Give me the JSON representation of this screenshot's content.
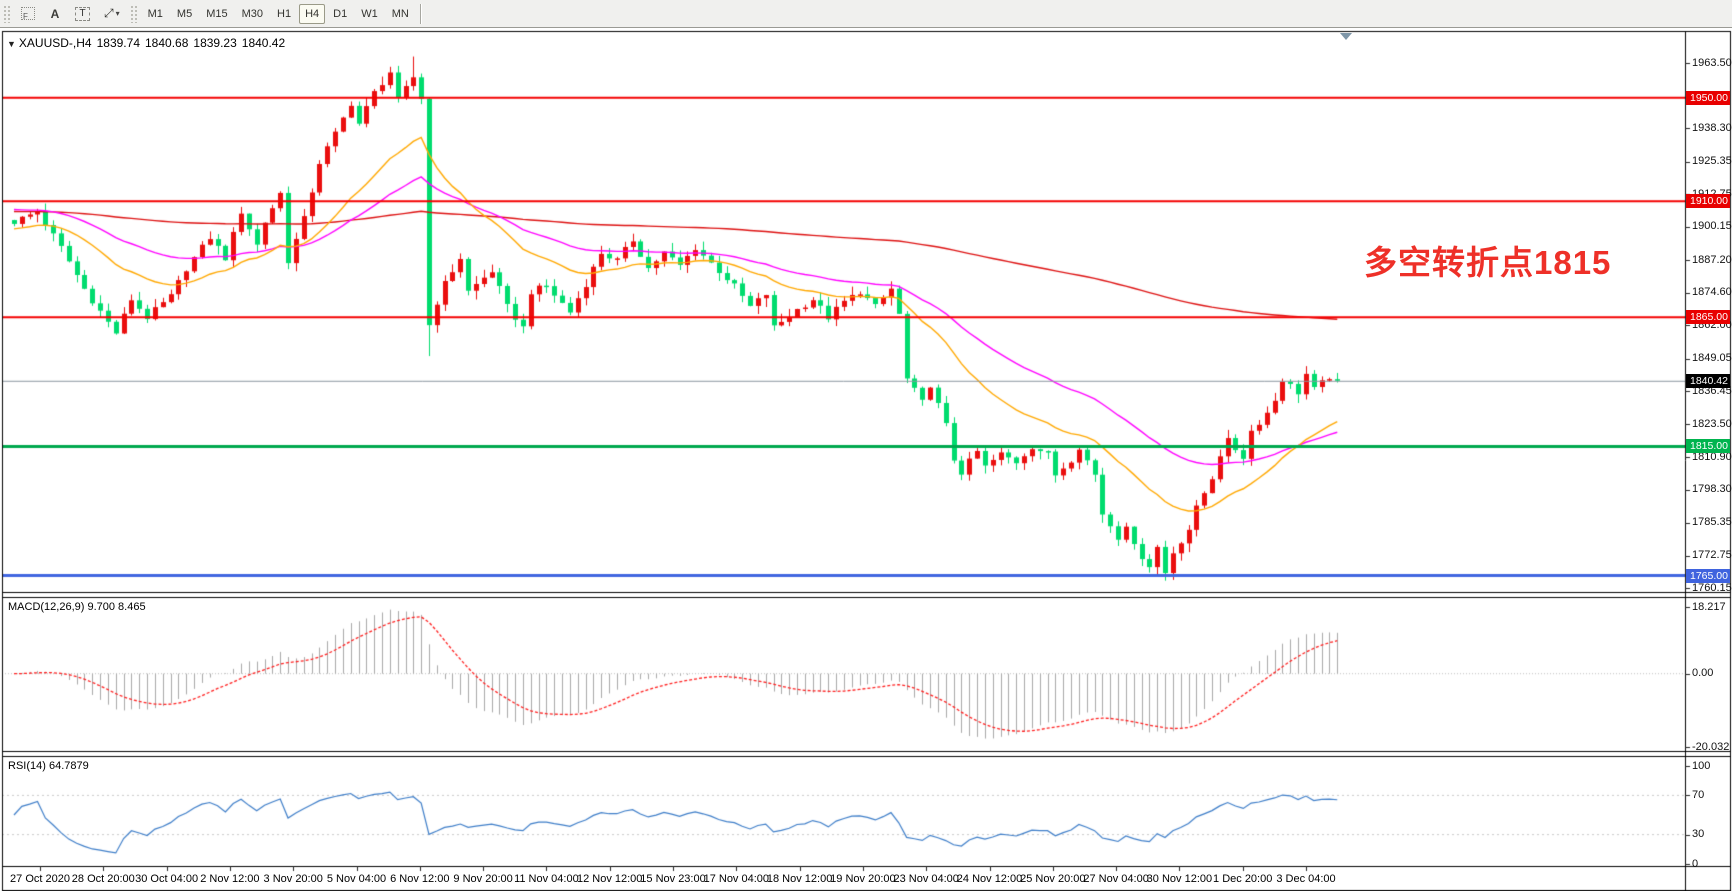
{
  "toolbar": {
    "tools": [
      {
        "name": "snap-grid-f-icon",
        "glyph": "F"
      },
      {
        "name": "text-label-icon",
        "glyph": "A"
      },
      {
        "name": "text-box-icon",
        "glyph": "T"
      },
      {
        "name": "draw-arrows-icon",
        "glyph": "⤢",
        "caret": "▾"
      }
    ],
    "timeframes": [
      "M1",
      "M5",
      "M15",
      "M30",
      "H1",
      "H4",
      "D1",
      "W1",
      "MN"
    ],
    "active_timeframe": "H4"
  },
  "chart": {
    "symbol_title": "XAUUSD-,H4",
    "ohlc": {
      "open": "1839.74",
      "high": "1840.68",
      "low": "1839.23",
      "close": "1840.42"
    },
    "annotation": {
      "text": "多空转折点1815",
      "color": "#ee3028"
    },
    "candle_colors": {
      "bull": "#ea0e0e",
      "bear": "#00dc6e"
    },
    "levels": [
      {
        "label": "1950.00",
        "value": 1950,
        "line_color": "#f40000",
        "badge_color": "#e80000",
        "width": 2
      },
      {
        "label": "1910.00",
        "value": 1910,
        "line_color": "#f40000",
        "badge_color": "#e80000",
        "width": 2
      },
      {
        "label": "1865.00",
        "value": 1865,
        "line_color": "#f40000",
        "badge_color": "#e80000",
        "width": 2
      },
      {
        "label": "1815.00",
        "value": 1815,
        "line_color": "#00a84e",
        "badge_color": "#00b44e",
        "width": 3
      },
      {
        "label": "1765.00",
        "value": 1765,
        "line_color": "#4166e0",
        "badge_color": "#3f63de",
        "width": 3
      }
    ],
    "current_price": {
      "label": "1840.42",
      "value": 1840.42,
      "line_color": "#8a949e",
      "badge_color": "#000000"
    },
    "price_scale": {
      "ticks": [
        "1963.50",
        "1938.30",
        "1925.35",
        "1912.75",
        "1900.15",
        "1887.20",
        "1874.60",
        "1862.00",
        "1849.05",
        "1836.45",
        "1823.50",
        "1810.90",
        "1798.30",
        "1785.35",
        "1772.75",
        "1760.15"
      ]
    }
  },
  "macd": {
    "label": "MACD(12,26,9) 9.700 8.465",
    "ticks": [
      "18.217",
      "0.00",
      "-20.032"
    ],
    "hist_color": "#a9a9a9",
    "signal_color": "#ff2020"
  },
  "rsi": {
    "label": "RSI(14) 64.7879",
    "ticks": [
      "100",
      "70",
      "30",
      "0"
    ],
    "line_color": "#3d7dc8",
    "levels": [
      70,
      30
    ]
  },
  "chart_data": {
    "type": "candlestick",
    "symbol": "XAUUSD",
    "timeframe": "H4",
    "bars": 170,
    "y_axis_range": [
      1760.15,
      1963.5
    ],
    "current_price": 1840.42,
    "last_bar": {
      "open": 1839.74,
      "high": 1840.68,
      "low": 1839.23,
      "close": 1840.42
    },
    "horizontal_levels": [
      1950,
      1910,
      1865,
      1815,
      1765
    ],
    "price_path_anchors": [
      [
        0,
        1902
      ],
      [
        3,
        1906
      ],
      [
        6,
        1892
      ],
      [
        9,
        1876
      ],
      [
        12,
        1863
      ],
      [
        13,
        1859
      ],
      [
        15,
        1872
      ],
      [
        17,
        1865
      ],
      [
        20,
        1873
      ],
      [
        22,
        1884
      ],
      [
        25,
        1896
      ],
      [
        27,
        1888
      ],
      [
        29,
        1906
      ],
      [
        31,
        1893
      ],
      [
        32,
        1902
      ],
      [
        34,
        1913
      ],
      [
        35,
        1887
      ],
      [
        37,
        1903
      ],
      [
        39,
        1925
      ],
      [
        41,
        1936
      ],
      [
        43,
        1948
      ],
      [
        44,
        1940
      ],
      [
        46,
        1952
      ],
      [
        48,
        1960
      ],
      [
        49,
        1949
      ],
      [
        51,
        1958
      ],
      [
        52,
        1950
      ],
      [
        53,
        1862
      ],
      [
        54,
        1871
      ],
      [
        55,
        1878
      ],
      [
        57,
        1888
      ],
      [
        58,
        1875
      ],
      [
        61,
        1883
      ],
      [
        63,
        1869
      ],
      [
        65,
        1861
      ],
      [
        66,
        1875
      ],
      [
        68,
        1877
      ],
      [
        71,
        1867
      ],
      [
        73,
        1878
      ],
      [
        75,
        1890
      ],
      [
        77,
        1887
      ],
      [
        79,
        1895
      ],
      [
        81,
        1884
      ],
      [
        83,
        1890
      ],
      [
        85,
        1885
      ],
      [
        87,
        1892
      ],
      [
        90,
        1883
      ],
      [
        92,
        1877
      ],
      [
        94,
        1869
      ],
      [
        96,
        1874
      ],
      [
        97,
        1861
      ],
      [
        100,
        1868
      ],
      [
        102,
        1872
      ],
      [
        104,
        1865
      ],
      [
        106,
        1871
      ],
      [
        108,
        1875
      ],
      [
        110,
        1869
      ],
      [
        112,
        1876
      ],
      [
        113,
        1866
      ],
      [
        114,
        1841
      ],
      [
        116,
        1832
      ],
      [
        117,
        1839
      ],
      [
        119,
        1823
      ],
      [
        120,
        1810
      ],
      [
        121,
        1805
      ],
      [
        123,
        1813
      ],
      [
        124,
        1807
      ],
      [
        126,
        1812
      ],
      [
        128,
        1809
      ],
      [
        130,
        1815
      ],
      [
        132,
        1812
      ],
      [
        133,
        1804
      ],
      [
        135,
        1810
      ],
      [
        136,
        1815
      ],
      [
        138,
        1804
      ],
      [
        139,
        1789
      ],
      [
        141,
        1780
      ],
      [
        142,
        1785
      ],
      [
        143,
        1776
      ],
      [
        145,
        1769
      ],
      [
        146,
        1776
      ],
      [
        147,
        1766
      ],
      [
        148,
        1774
      ],
      [
        150,
        1783
      ],
      [
        151,
        1791
      ],
      [
        153,
        1803
      ],
      [
        154,
        1812
      ],
      [
        155,
        1817
      ],
      [
        157,
        1811
      ],
      [
        158,
        1821
      ],
      [
        160,
        1828
      ],
      [
        161,
        1833
      ],
      [
        162,
        1841
      ],
      [
        164,
        1836
      ],
      [
        165,
        1843
      ],
      [
        166,
        1837
      ],
      [
        168,
        1842
      ],
      [
        169,
        1840.42
      ]
    ],
    "wick_events": [
      [
        51,
        "h",
        1966
      ],
      [
        53,
        "l",
        1850
      ],
      [
        147,
        "l",
        1763
      ]
    ],
    "moving_averages": [
      {
        "name": "slow",
        "color": "#dd1111",
        "alpha": 0.008,
        "start": 1906
      },
      {
        "name": "mid",
        "color": "#ff00ff",
        "alpha": 0.045,
        "start": 1907
      },
      {
        "name": "fast",
        "color": "#ffa800",
        "alpha": 0.09,
        "start": 1899
      }
    ],
    "macd": {
      "params": [
        12,
        26,
        9
      ],
      "current": [
        9.7,
        8.465
      ],
      "axis": [
        18.217,
        0,
        -20.032
      ]
    },
    "rsi": {
      "period": 14,
      "current": 64.7879,
      "axis": [
        100,
        70,
        30,
        0
      ],
      "levels": [
        70,
        30
      ]
    },
    "x_axis_labels": [
      "27 Oct 2020",
      "28 Oct 20:00",
      "30 Oct 04:00",
      "2 Nov 12:00",
      "3 Nov 20:00",
      "5 Nov 04:00",
      "6 Nov 12:00",
      "9 Nov 20:00",
      "11 Nov 04:00",
      "12 Nov 12:00",
      "15 Nov 23:00",
      "17 Nov 04:00",
      "18 Nov 12:00",
      "19 Nov 20:00",
      "23 Nov 04:00",
      "24 Nov 12:00",
      "25 Nov 20:00",
      "27 Nov 04:00",
      "30 Nov 12:00",
      "1 Dec 20:00",
      "3 Dec 04:00"
    ]
  }
}
